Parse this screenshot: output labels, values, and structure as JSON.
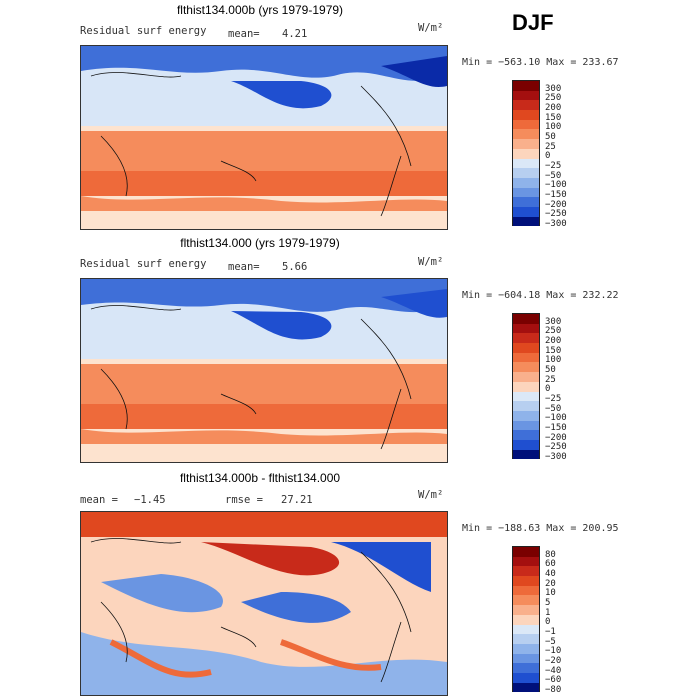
{
  "season": "DJF",
  "units": "W/m²",
  "chart_data": [
    {
      "type": "heatmap",
      "title": "flthist134.000b (yrs 1979-1979)",
      "variable": "Residual surf energy",
      "mean_label": "mean=",
      "mean_value": "4.21",
      "minmax": "Min = −563.10 Max = 233.67",
      "colorbar_levels": [
        "300",
        "250",
        "200",
        "150",
        "100",
        "50",
        "25",
        "0",
        "−25",
        "−50",
        "−100",
        "−150",
        "−200",
        "−250",
        "−300"
      ]
    },
    {
      "type": "heatmap",
      "title": "flthist134.000 (yrs 1979-1979)",
      "variable": "Residual surf energy",
      "mean_label": "mean=",
      "mean_value": "5.66",
      "minmax": "Min = −604.18 Max = 232.22",
      "colorbar_levels": [
        "300",
        "250",
        "200",
        "150",
        "100",
        "50",
        "25",
        "0",
        "−25",
        "−50",
        "−100",
        "−150",
        "−200",
        "−250",
        "−300"
      ]
    },
    {
      "type": "heatmap",
      "title": "flthist134.000b - flthist134.000",
      "mean_label": "mean =",
      "mean_value": "−1.45",
      "rmse_label": "rmse =",
      "rmse_value": "27.21",
      "minmax": "Min = −188.63 Max = 200.95",
      "colorbar_levels": [
        "80",
        "60",
        "40",
        "20",
        "10",
        "5",
        "1",
        "0",
        "−1",
        "−5",
        "−10",
        "−20",
        "−40",
        "−60",
        "−80"
      ]
    }
  ],
  "colors": {
    "ramp": [
      "#7a0000",
      "#a40f0f",
      "#c82a1a",
      "#e0481f",
      "#ee6a3a",
      "#f58c5c",
      "#f9b08c",
      "#fcd5bd",
      "#fdecd8",
      "#dbe8f7",
      "#b7cff0",
      "#8fb3ea",
      "#6a95e2",
      "#3f6fd8",
      "#1f4fd0",
      "#0a2aa8",
      "#00107a"
    ]
  }
}
